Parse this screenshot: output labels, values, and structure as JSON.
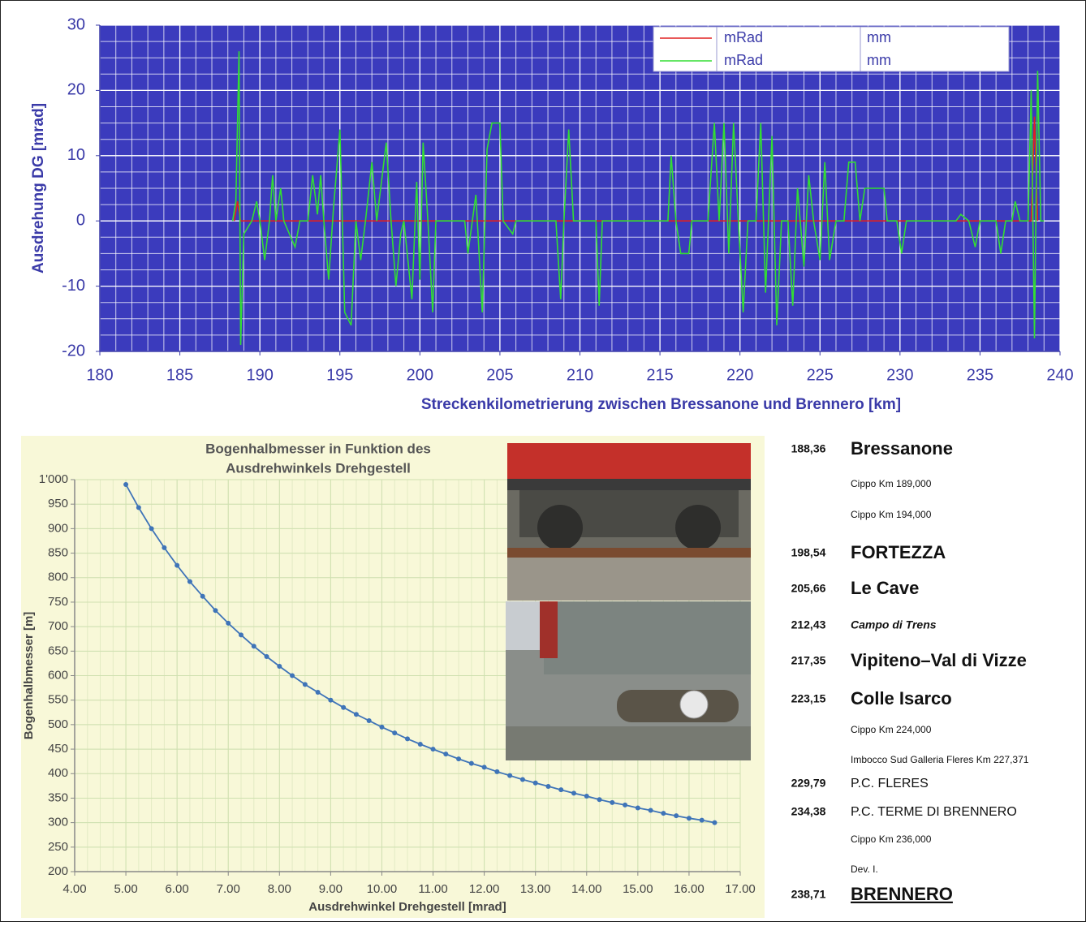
{
  "chart_data": [
    {
      "type": "line",
      "y_label": "Ausdrehung DG [mrad]",
      "x_label": "Streckenkilometrierung zwischen Bressanone und Brennero [km]",
      "xlim": [
        180,
        240
      ],
      "xticks": [
        180,
        185,
        190,
        195,
        200,
        205,
        210,
        215,
        220,
        225,
        230,
        235,
        240
      ],
      "ylim": [
        -20,
        30
      ],
      "yticks": [
        -20,
        -10,
        0,
        10,
        20,
        30
      ],
      "grid": true,
      "background": "#3b3bbd",
      "legend": "top-right",
      "series": [
        {
          "name": "mRad",
          "unit": "mm",
          "color": "#e02020",
          "x": [
            188.4,
            188.6,
            188.8,
            238.2,
            238.4,
            238.6
          ],
          "values": [
            0,
            3,
            0,
            0,
            16,
            0
          ]
        },
        {
          "name": "mRad",
          "unit": "mm",
          "color": "#33dd33",
          "x": [
            188.3,
            188.5,
            188.7,
            188.8,
            189,
            189.5,
            189.8,
            190,
            190.3,
            190.6,
            190.8,
            191,
            191.3,
            191.5,
            192.2,
            192.5,
            193,
            193.3,
            193.6,
            193.8,
            194,
            194.3,
            194.6,
            195,
            195.3,
            195.7,
            196,
            196.3,
            196.6,
            197,
            197.3,
            197.9,
            198.2,
            198.5,
            198.8,
            199,
            199.5,
            199.8,
            200,
            200.2,
            200.5,
            200.8,
            201,
            202,
            202.8,
            203,
            203.5,
            203.9,
            204.2,
            204.5,
            205,
            205.2,
            205.8,
            206,
            208.5,
            208.8,
            209,
            209.3,
            209.6,
            211,
            211.2,
            211.4,
            215.5,
            215.7,
            216,
            216.3,
            216.8,
            217,
            218,
            218.4,
            218.7,
            219,
            219.3,
            219.6,
            219.9,
            220.2,
            220.5,
            221,
            221.3,
            221.6,
            222,
            222.3,
            222.6,
            223,
            223.3,
            223.6,
            224,
            224.3,
            224.6,
            225,
            225.3,
            225.6,
            226,
            226.5,
            226.8,
            227.2,
            227.5,
            227.8,
            229,
            229.2,
            229.8,
            230.1,
            230.4,
            233.5,
            233.8,
            234.3,
            234.7,
            235,
            236,
            236.3,
            236.6,
            237,
            237.2,
            237.5,
            238,
            238.2,
            238.4,
            238.6,
            238.8,
            239
          ],
          "values": [
            0,
            3,
            26,
            -19,
            -2,
            0,
            3,
            0,
            -6,
            0,
            7,
            0,
            5,
            0,
            -4,
            0,
            0,
            7,
            1,
            7,
            0,
            -9,
            2,
            14,
            -14,
            -16,
            0,
            -6,
            0,
            9,
            0,
            12,
            0,
            -10,
            -2,
            0,
            -12,
            6,
            -9,
            12,
            0,
            -14,
            0,
            0,
            0,
            -5,
            4,
            -14,
            11,
            15,
            15,
            0,
            -2,
            0,
            0,
            -12,
            0,
            14,
            0,
            0,
            -13,
            0,
            0,
            10,
            0,
            -5,
            -5,
            0,
            0,
            15,
            0,
            15,
            -5,
            15,
            0,
            -14,
            0,
            0,
            15,
            -11,
            13,
            -16,
            0,
            0,
            -13,
            5,
            -7,
            7,
            0,
            -6,
            9,
            -6,
            0,
            0,
            9,
            9,
            0,
            5,
            5,
            0,
            0,
            -5,
            0,
            0,
            1,
            0,
            -4,
            0,
            0,
            -5,
            0,
            0,
            3,
            0,
            0,
            20,
            -18,
            23,
            0,
            0
          ]
        }
      ]
    },
    {
      "type": "line",
      "title": [
        "Bogenhalbmesser in Funktion des",
        "Ausdrehwinkels Drehgestell"
      ],
      "y_label": "Bogenhalbmesser [m]",
      "x_label": "Ausdrehwinkel Drehgestell [mrad]",
      "xlim": [
        4,
        17
      ],
      "xticks": [
        {
          "value": 4,
          "label": "4.00"
        },
        {
          "value": 5,
          "label": "5.00"
        },
        {
          "value": 6,
          "label": "6.00"
        },
        {
          "value": 7,
          "label": "7.00"
        },
        {
          "value": 8,
          "label": "8.00"
        },
        {
          "value": 9,
          "label": "9.00"
        },
        {
          "value": 10,
          "label": "10.00"
        },
        {
          "value": 11,
          "label": "11.00"
        },
        {
          "value": 12,
          "label": "12.00"
        },
        {
          "value": 13,
          "label": "13.00"
        },
        {
          "value": 14,
          "label": "14.00"
        },
        {
          "value": 15,
          "label": "15.00"
        },
        {
          "value": 16,
          "label": "16.00"
        },
        {
          "value": 17,
          "label": "17.00"
        }
      ],
      "ylim": [
        200,
        1000
      ],
      "yticks": [
        200,
        250,
        300,
        350,
        400,
        450,
        500,
        550,
        600,
        650,
        700,
        750,
        800,
        850,
        900,
        950,
        {
          "value": 1000,
          "label": "1'000"
        }
      ],
      "grid": true,
      "background": "#f8f8d8",
      "color": "#3f74b8",
      "x": [
        5,
        5.25,
        5.5,
        5.75,
        6,
        6.25,
        6.5,
        6.75,
        7,
        7.25,
        7.5,
        7.75,
        8,
        8.25,
        8.5,
        8.75,
        9,
        9.25,
        9.5,
        9.75,
        10,
        10.25,
        10.5,
        10.75,
        11,
        11.25,
        11.5,
        11.75,
        12,
        12.25,
        12.5,
        12.75,
        13,
        13.25,
        13.5,
        13.75,
        14,
        14.25,
        14.5,
        14.75,
        15,
        15.25,
        15.5,
        15.75,
        16,
        16.25,
        16.5
      ],
      "values": [
        990,
        943,
        900,
        861,
        825,
        792,
        762,
        733,
        707,
        683,
        660,
        639,
        619,
        600,
        582,
        566,
        550,
        535,
        521,
        508,
        495,
        483,
        471,
        460,
        450,
        440,
        430,
        421,
        413,
        404,
        396,
        388,
        381,
        374,
        367,
        360,
        354,
        347,
        341,
        336,
        330,
        325,
        319,
        314,
        309,
        305,
        300
      ]
    }
  ],
  "stations": [
    {
      "km": "188,36",
      "name": "Bressanone",
      "style": "large"
    },
    {
      "name": "Cippo Km 189,000",
      "style": "small"
    },
    {
      "name": "Cippo Km 194,000",
      "style": "small"
    },
    {
      "km": "198,54",
      "name": "FORTEZZA",
      "style": "large"
    },
    {
      "km": "205,66",
      "name": "Le Cave",
      "style": "large"
    },
    {
      "km": "212,43",
      "name": "Campo di Trens",
      "style": "italic"
    },
    {
      "km": "217,35",
      "name": "Vipiteno–Val di Vizze",
      "style": "large"
    },
    {
      "km": "223,15",
      "name": "Colle Isarco",
      "style": "large"
    },
    {
      "name": "Cippo Km 224,000",
      "style": "small"
    },
    {
      "name": "Imbocco Sud Galleria Fleres Km 227,371",
      "style": "small"
    },
    {
      "km": "229,79",
      "name": "P.C. FLERES",
      "style": "medium"
    },
    {
      "km": "234,38",
      "name": "P.C. TERME DI BRENNERO",
      "style": "medium"
    },
    {
      "name": "Cippo Km 236,000",
      "style": "small"
    },
    {
      "name": "Dev. I.",
      "style": "small"
    },
    {
      "km": "238,71",
      "name": "BRENNERO",
      "style": "underline"
    }
  ]
}
